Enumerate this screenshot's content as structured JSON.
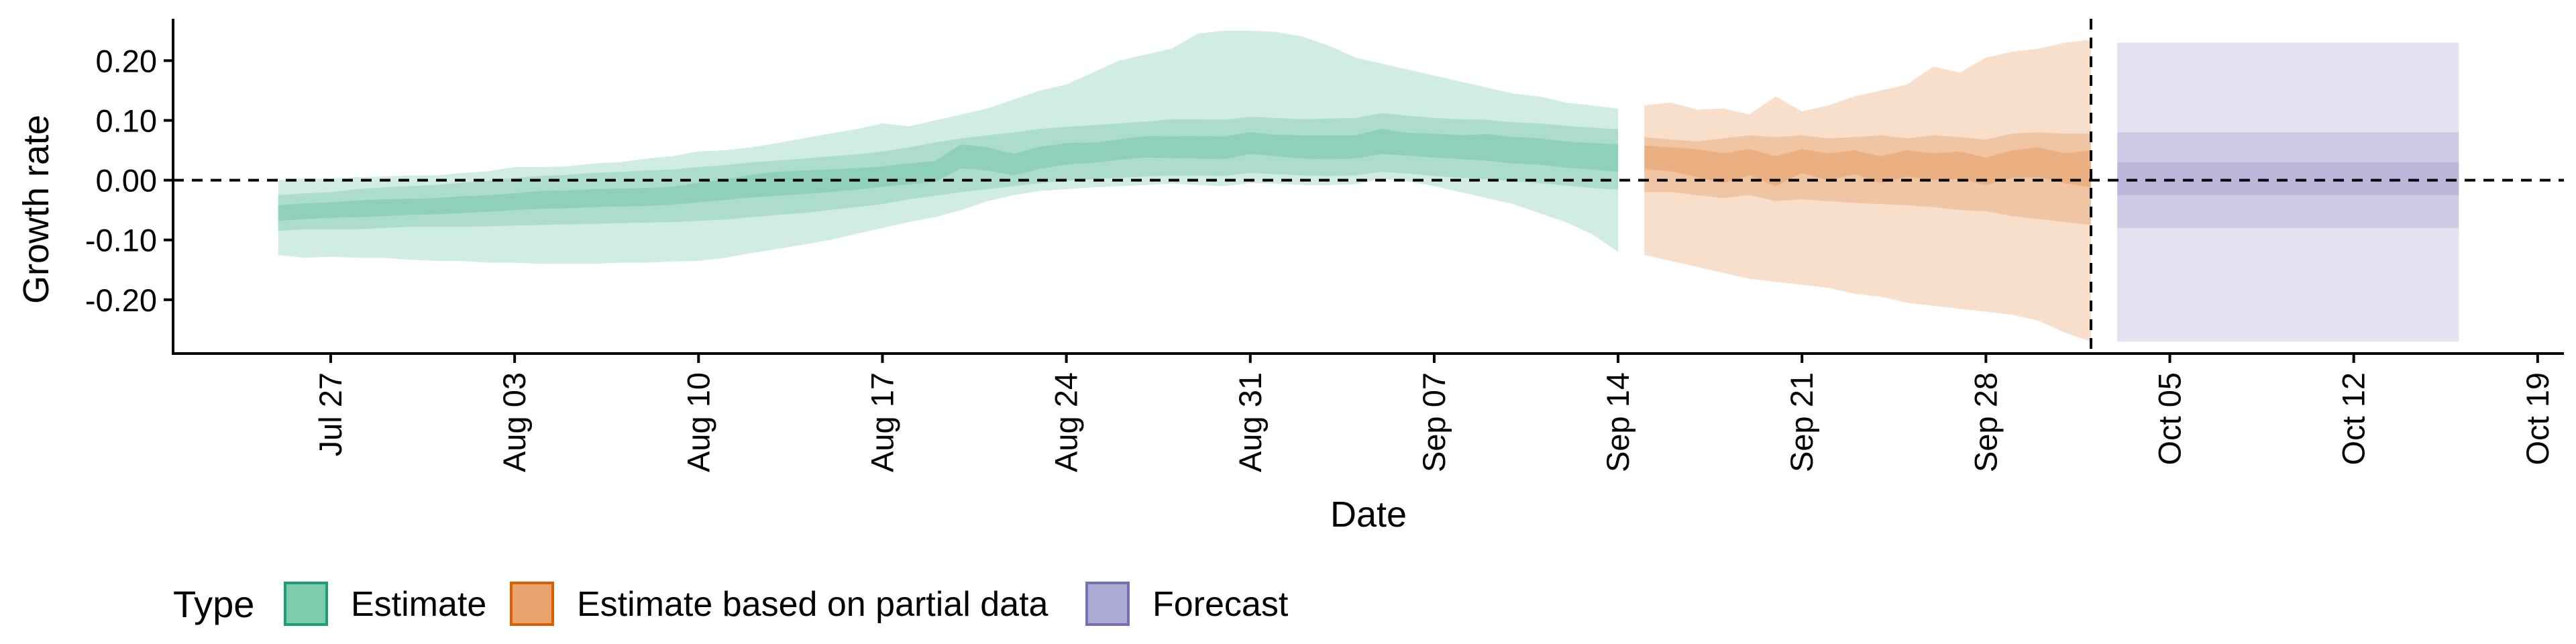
{
  "chart_data": {
    "type": "area",
    "xlabel": "Date",
    "ylabel": "Growth rate",
    "ylim": [
      -0.29,
      0.27
    ],
    "xlim": [
      "2020-07-21",
      "2020-10-20"
    ],
    "x_ticks": [
      {
        "date": "2020-07-27",
        "label": "Jul 27"
      },
      {
        "date": "2020-08-03",
        "label": "Aug 03"
      },
      {
        "date": "2020-08-10",
        "label": "Aug 10"
      },
      {
        "date": "2020-08-17",
        "label": "Aug 17"
      },
      {
        "date": "2020-08-24",
        "label": "Aug 24"
      },
      {
        "date": "2020-08-31",
        "label": "Aug 31"
      },
      {
        "date": "2020-09-07",
        "label": "Sep 07"
      },
      {
        "date": "2020-09-14",
        "label": "Sep 14"
      },
      {
        "date": "2020-09-21",
        "label": "Sep 21"
      },
      {
        "date": "2020-09-28",
        "label": "Sep 28"
      },
      {
        "date": "2020-10-05",
        "label": "Oct 05"
      },
      {
        "date": "2020-10-12",
        "label": "Oct 12"
      },
      {
        "date": "2020-10-19",
        "label": "Oct 19"
      }
    ],
    "y_ticks": [
      {
        "value": 0.2,
        "label": "0.20"
      },
      {
        "value": 0.1,
        "label": "0.10"
      },
      {
        "value": 0.0,
        "label": "0.00"
      },
      {
        "value": -0.1,
        "label": "-0.10"
      },
      {
        "value": -0.2,
        "label": "-0.20"
      }
    ],
    "reference_lines": {
      "horizontal_y": 0.0,
      "vertical_date": "2020-10-02"
    },
    "grid": false,
    "legend": {
      "title": "Type",
      "position": "bottom",
      "entries": [
        {
          "label": "Estimate",
          "fill": "#7fccac",
          "border": "#1b9e77"
        },
        {
          "label": "Estimate based on partial data",
          "fill": "#eaa46f",
          "border": "#d95f02"
        },
        {
          "label": "Forecast",
          "fill": "#aaaad2",
          "border": "#7570b3"
        }
      ]
    },
    "series": [
      {
        "name": "Estimate",
        "color": "#1b9e77",
        "dates": [
          "2020-07-25",
          "2020-07-26",
          "2020-07-27",
          "2020-07-28",
          "2020-07-29",
          "2020-07-30",
          "2020-07-31",
          "2020-08-01",
          "2020-08-02",
          "2020-08-03",
          "2020-08-04",
          "2020-08-05",
          "2020-08-06",
          "2020-08-07",
          "2020-08-08",
          "2020-08-09",
          "2020-08-10",
          "2020-08-11",
          "2020-08-12",
          "2020-08-13",
          "2020-08-14",
          "2020-08-15",
          "2020-08-16",
          "2020-08-17",
          "2020-08-18",
          "2020-08-19",
          "2020-08-20",
          "2020-08-21",
          "2020-08-22",
          "2020-08-23",
          "2020-08-24",
          "2020-08-25",
          "2020-08-26",
          "2020-08-27",
          "2020-08-28",
          "2020-08-29",
          "2020-08-30",
          "2020-08-31",
          "2020-09-01",
          "2020-09-02",
          "2020-09-03",
          "2020-09-04",
          "2020-09-05",
          "2020-09-06",
          "2020-09-07",
          "2020-09-08",
          "2020-09-09",
          "2020-09-10",
          "2020-09-11",
          "2020-09-12",
          "2020-09-13",
          "2020-09-14"
        ],
        "median": [
          -0.055,
          -0.052,
          -0.05,
          -0.048,
          -0.046,
          -0.045,
          -0.044,
          -0.041,
          -0.039,
          -0.036,
          -0.033,
          -0.032,
          -0.03,
          -0.029,
          -0.028,
          -0.026,
          -0.02,
          -0.016,
          -0.01,
          -0.006,
          -0.004,
          -0.002,
          0.001,
          0.005,
          0.009,
          0.014,
          0.04,
          0.036,
          0.026,
          0.038,
          0.044,
          0.046,
          0.051,
          0.056,
          0.055,
          0.055,
          0.054,
          0.062,
          0.058,
          0.056,
          0.055,
          0.056,
          0.065,
          0.06,
          0.058,
          0.055,
          0.055,
          0.05,
          0.048,
          0.043,
          0.04,
          0.037
        ],
        "inner_lower": [
          -0.068,
          -0.065,
          -0.063,
          -0.062,
          -0.06,
          -0.058,
          -0.057,
          -0.055,
          -0.053,
          -0.05,
          -0.048,
          -0.047,
          -0.045,
          -0.044,
          -0.043,
          -0.041,
          -0.037,
          -0.033,
          -0.029,
          -0.026,
          -0.023,
          -0.02,
          -0.016,
          -0.011,
          -0.007,
          -0.003,
          0.02,
          0.016,
          0.008,
          0.019,
          0.026,
          0.029,
          0.034,
          0.038,
          0.037,
          0.036,
          0.035,
          0.044,
          0.04,
          0.036,
          0.035,
          0.036,
          0.044,
          0.041,
          0.038,
          0.035,
          0.033,
          0.028,
          0.026,
          0.021,
          0.018,
          0.014
        ],
        "inner_upper": [
          -0.042,
          -0.039,
          -0.037,
          -0.034,
          -0.032,
          -0.031,
          -0.03,
          -0.027,
          -0.025,
          -0.022,
          -0.018,
          -0.017,
          -0.015,
          -0.014,
          -0.013,
          -0.011,
          -0.004,
          0.001,
          0.009,
          0.014,
          0.016,
          0.018,
          0.02,
          0.023,
          0.028,
          0.032,
          0.06,
          0.055,
          0.044,
          0.056,
          0.062,
          0.063,
          0.068,
          0.074,
          0.073,
          0.074,
          0.073,
          0.08,
          0.076,
          0.075,
          0.075,
          0.075,
          0.086,
          0.079,
          0.078,
          0.075,
          0.077,
          0.072,
          0.07,
          0.065,
          0.062,
          0.06
        ],
        "mid_lower": [
          -0.085,
          -0.082,
          -0.082,
          -0.082,
          -0.08,
          -0.078,
          -0.078,
          -0.078,
          -0.077,
          -0.076,
          -0.075,
          -0.074,
          -0.073,
          -0.072,
          -0.071,
          -0.07,
          -0.068,
          -0.066,
          -0.062,
          -0.058,
          -0.055,
          -0.05,
          -0.045,
          -0.04,
          -0.032,
          -0.026,
          -0.02,
          -0.015,
          -0.01,
          -0.005,
          -0.001,
          0.002,
          0.004,
          0.006,
          0.008,
          0.008,
          0.007,
          0.012,
          0.01,
          0.008,
          0.007,
          0.008,
          0.014,
          0.011,
          0.007,
          0.004,
          0.002,
          -0.002,
          -0.005,
          -0.009,
          -0.013,
          -0.016
        ],
        "mid_upper": [
          -0.025,
          -0.022,
          -0.02,
          -0.015,
          -0.012,
          -0.01,
          -0.008,
          -0.004,
          -0.001,
          0.004,
          0.007,
          0.009,
          0.012,
          0.014,
          0.016,
          0.018,
          0.022,
          0.025,
          0.03,
          0.033,
          0.036,
          0.04,
          0.043,
          0.048,
          0.055,
          0.063,
          0.07,
          0.075,
          0.08,
          0.086,
          0.089,
          0.092,
          0.095,
          0.098,
          0.102,
          0.102,
          0.101,
          0.106,
          0.104,
          0.102,
          0.103,
          0.104,
          0.112,
          0.108,
          0.104,
          0.102,
          0.101,
          0.097,
          0.095,
          0.091,
          0.088,
          0.085
        ],
        "outer_lower": [
          -0.125,
          -0.13,
          -0.128,
          -0.13,
          -0.13,
          -0.133,
          -0.135,
          -0.135,
          -0.138,
          -0.138,
          -0.14,
          -0.14,
          -0.14,
          -0.138,
          -0.138,
          -0.136,
          -0.135,
          -0.13,
          -0.122,
          -0.115,
          -0.108,
          -0.1,
          -0.09,
          -0.08,
          -0.07,
          -0.062,
          -0.05,
          -0.035,
          -0.025,
          -0.018,
          -0.015,
          -0.012,
          -0.01,
          -0.008,
          -0.006,
          -0.008,
          -0.01,
          -0.005,
          -0.006,
          -0.008,
          -0.008,
          -0.007,
          0.002,
          -0.002,
          -0.01,
          -0.02,
          -0.03,
          -0.04,
          -0.055,
          -0.07,
          -0.09,
          -0.12
        ],
        "outer_upper": [
          0.0,
          0.003,
          0.002,
          0.005,
          0.006,
          0.008,
          0.008,
          0.012,
          0.015,
          0.022,
          0.022,
          0.023,
          0.028,
          0.03,
          0.036,
          0.04,
          0.048,
          0.05,
          0.055,
          0.062,
          0.07,
          0.078,
          0.085,
          0.095,
          0.09,
          0.1,
          0.11,
          0.12,
          0.135,
          0.15,
          0.16,
          0.18,
          0.2,
          0.21,
          0.22,
          0.245,
          0.25,
          0.25,
          0.248,
          0.24,
          0.225,
          0.205,
          0.195,
          0.185,
          0.175,
          0.165,
          0.155,
          0.145,
          0.14,
          0.13,
          0.125,
          0.12
        ]
      },
      {
        "name": "Estimate based on partial data",
        "color": "#d95f02",
        "dates": [
          "2020-09-15",
          "2020-09-16",
          "2020-09-17",
          "2020-09-18",
          "2020-09-19",
          "2020-09-20",
          "2020-09-21",
          "2020-09-22",
          "2020-09-23",
          "2020-09-24",
          "2020-09-25",
          "2020-09-26",
          "2020-09-27",
          "2020-09-28",
          "2020-09-29",
          "2020-09-30",
          "2020-10-01",
          "2020-10-02"
        ],
        "median": [
          0.038,
          0.035,
          0.03,
          0.02,
          0.03,
          0.015,
          0.032,
          0.022,
          0.03,
          0.018,
          0.028,
          0.022,
          0.025,
          0.015,
          0.028,
          0.03,
          0.02,
          0.02
        ],
        "inner_lower": [
          0.018,
          0.015,
          0.005,
          -0.005,
          0.008,
          -0.01,
          0.012,
          0.0,
          0.01,
          -0.005,
          0.006,
          0.0,
          0.002,
          -0.008,
          0.004,
          0.005,
          -0.005,
          -0.012
        ],
        "inner_upper": [
          0.058,
          0.055,
          0.052,
          0.045,
          0.052,
          0.04,
          0.052,
          0.045,
          0.05,
          0.04,
          0.05,
          0.045,
          0.048,
          0.038,
          0.05,
          0.055,
          0.045,
          0.05
        ],
        "mid_lower": [
          -0.02,
          -0.02,
          -0.025,
          -0.03,
          -0.025,
          -0.035,
          -0.032,
          -0.035,
          -0.038,
          -0.04,
          -0.042,
          -0.045,
          -0.05,
          -0.052,
          -0.06,
          -0.065,
          -0.07,
          -0.075
        ],
        "mid_upper": [
          0.072,
          0.068,
          0.065,
          0.07,
          0.075,
          0.072,
          0.075,
          0.07,
          0.072,
          0.075,
          0.07,
          0.075,
          0.072,
          0.068,
          0.078,
          0.08,
          0.078,
          0.078
        ],
        "outer_lower": [
          -0.125,
          -0.135,
          -0.145,
          -0.155,
          -0.165,
          -0.17,
          -0.175,
          -0.18,
          -0.19,
          -0.195,
          -0.205,
          -0.21,
          -0.215,
          -0.22,
          -0.225,
          -0.235,
          -0.255,
          -0.27
        ],
        "outer_upper": [
          0.125,
          0.13,
          0.118,
          0.12,
          0.11,
          0.14,
          0.115,
          0.125,
          0.14,
          0.15,
          0.16,
          0.19,
          0.18,
          0.205,
          0.215,
          0.22,
          0.23,
          0.235
        ]
      },
      {
        "name": "Forecast",
        "color": "#7570b3",
        "dates": [
          "2020-10-03",
          "2020-10-16"
        ],
        "median": [
          0.0,
          0.0
        ],
        "inner_lower": [
          -0.025,
          -0.025
        ],
        "inner_upper": [
          0.03,
          0.03
        ],
        "mid_lower": [
          -0.08,
          -0.08
        ],
        "mid_upper": [
          0.08,
          0.08
        ],
        "outer_lower": [
          -0.27,
          -0.27
        ],
        "outer_upper": [
          0.23,
          0.23
        ]
      }
    ]
  }
}
